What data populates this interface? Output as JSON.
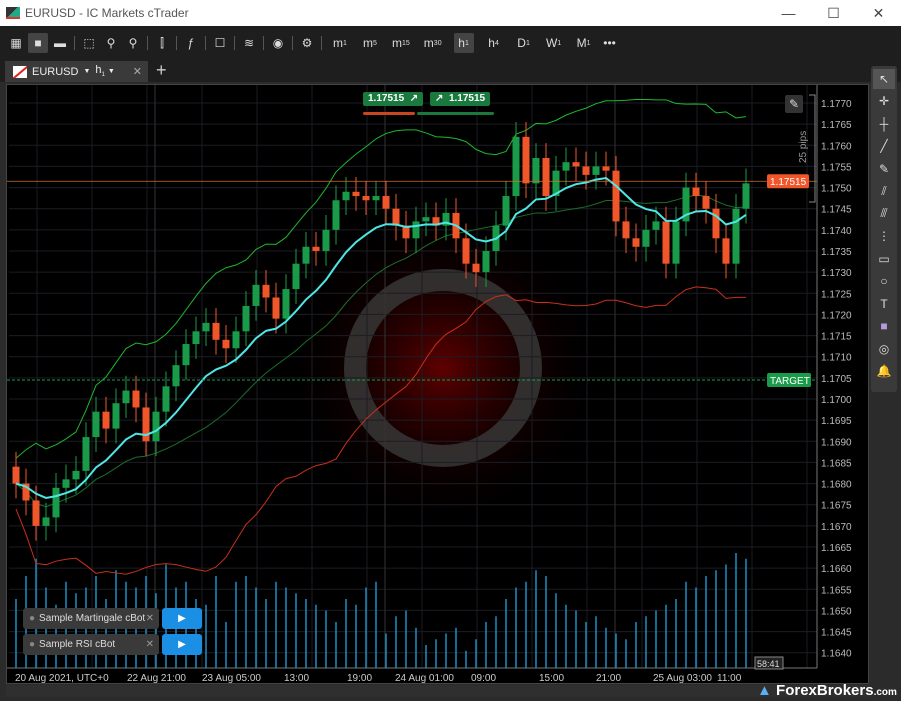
{
  "window": {
    "title": "EURUSD - IC Markets cTrader",
    "minimize": "—",
    "maximize": "☐",
    "close": "✕"
  },
  "toolbar": {
    "items": [
      {
        "icon": "grid-layout-icon",
        "label": "▦"
      },
      {
        "icon": "single-layout-icon",
        "label": "■"
      },
      {
        "icon": "split-layout-icon",
        "label": "▬"
      },
      {
        "icon": "new-chart-icon",
        "label": "⬚"
      },
      {
        "icon": "zoom-out-icon",
        "label": "⚲"
      },
      {
        "icon": "zoom-in-icon",
        "label": "⚲"
      },
      {
        "icon": "candlestick-icon",
        "label": "⫿"
      },
      {
        "icon": "indicator-icon",
        "label": "ƒ"
      },
      {
        "icon": "bot-icon",
        "label": "☐"
      },
      {
        "icon": "layers-icon",
        "label": "≋"
      },
      {
        "icon": "eye-icon",
        "label": "◉"
      },
      {
        "icon": "chart-settings-icon",
        "label": "⚙"
      }
    ],
    "timeframes": [
      {
        "l": "m",
        "s": "1"
      },
      {
        "l": "m",
        "s": "5"
      },
      {
        "l": "m",
        "s": "15"
      },
      {
        "l": "m",
        "s": "30"
      },
      {
        "l": "h",
        "s": "1",
        "selected": true
      },
      {
        "l": "h",
        "s": "4"
      },
      {
        "l": "D",
        "s": "1"
      },
      {
        "l": "W",
        "s": "1"
      },
      {
        "l": "M",
        "s": "1"
      }
    ],
    "more": "•••"
  },
  "tab": {
    "symbol": "EURUSD",
    "timeframe": "h",
    "timeframe_sub": "1",
    "close": "✕",
    "add": "+"
  },
  "trade": {
    "sell_price": "1.17515",
    "buy_price": "1.17515",
    "sell_arrow": "↗",
    "buy_arrow": "↗"
  },
  "price_axis": {
    "labels": [
      "1.1770",
      "1.1765",
      "1.1760",
      "1.1755",
      "1.1750",
      "1.1745",
      "1.1740",
      "1.1735",
      "1.1730",
      "1.1725",
      "1.1720",
      "1.1715",
      "1.1710",
      "1.1705",
      "1.1700",
      "1.1695",
      "1.1690",
      "1.1685",
      "1.1680",
      "1.1675",
      "1.1670",
      "1.1665",
      "1.1660",
      "1.1655",
      "1.1650",
      "1.1645",
      "1.1640"
    ],
    "current_price": "1.17515",
    "target_label": "TARGET",
    "target_price": 1.17045,
    "range_label": "25 pips"
  },
  "time_axis": {
    "labels": [
      "20 Aug 2021, UTC+0",
      "22 Aug 21:00",
      "23 Aug 05:00",
      "13:00",
      "19:00",
      "24 Aug 01:00",
      "09:00",
      "15:00",
      "21:00",
      "25 Aug 03:00",
      "11:00"
    ],
    "countdown": "58:41"
  },
  "bots": [
    {
      "name": "Sample Martingale cBot",
      "close": "✕",
      "play": "▶"
    },
    {
      "name": "Sample RSI cBot",
      "close": "✕",
      "play": "▶"
    }
  ],
  "right_tools": [
    {
      "icon": "cursor-icon",
      "label": "↖"
    },
    {
      "icon": "crosshair-icon",
      "label": "✛"
    },
    {
      "icon": "crosshair-box-icon",
      "label": "┼"
    },
    {
      "icon": "line-icon",
      "label": "╱"
    },
    {
      "icon": "pen-icon",
      "label": "✎"
    },
    {
      "icon": "fibonacci-fan-icon",
      "label": "⫽"
    },
    {
      "icon": "pitchfork-icon",
      "label": "⫻"
    },
    {
      "icon": "fibonacci-icon",
      "label": "⋮"
    },
    {
      "icon": "rectangle-icon",
      "label": "▭"
    },
    {
      "icon": "circle-icon",
      "label": "○"
    },
    {
      "icon": "text-icon",
      "label": "T"
    },
    {
      "icon": "color-swatch-icon",
      "label": "■"
    },
    {
      "icon": "camera-icon",
      "label": "◎"
    },
    {
      "icon": "bell-icon",
      "label": "🔔"
    }
  ],
  "watermark": "ForexBrokers.com",
  "colors": {
    "bull": "#1a9b4a",
    "bear": "#f0562a",
    "ma": "#4fe6e6",
    "upper_band": "#1eb82e",
    "lower_band": "#c8301c",
    "volume": "#1c8fc4",
    "target": "#1a9b4a"
  },
  "chart_data": {
    "type": "candlestick",
    "closes": [
      1.168,
      1.1676,
      1.167,
      1.1672,
      1.1679,
      1.1681,
      1.1683,
      1.1691,
      1.1697,
      1.1693,
      1.1699,
      1.1702,
      1.1698,
      1.169,
      1.1697,
      1.1703,
      1.1708,
      1.1713,
      1.1716,
      1.1718,
      1.1714,
      1.1712,
      1.1716,
      1.1722,
      1.1727,
      1.1724,
      1.1719,
      1.1726,
      1.1732,
      1.1736,
      1.1735,
      1.174,
      1.1747,
      1.1749,
      1.1748,
      1.1747,
      1.1748,
      1.1745,
      1.1741,
      1.1738,
      1.1742,
      1.1743,
      1.1741,
      1.1744,
      1.1738,
      1.1732,
      1.173,
      1.1735,
      1.1741,
      1.1748,
      1.1762,
      1.1751,
      1.1757,
      1.1748,
      1.1754,
      1.1756,
      1.1755,
      1.1753,
      1.1755,
      1.1754,
      1.1742,
      1.1738,
      1.1736,
      1.174,
      1.1742,
      1.1732,
      1.1742,
      1.175,
      1.1748,
      1.1745,
      1.1738,
      1.1732,
      1.1745,
      1.1751
    ],
    "volumes": [
      60,
      80,
      95,
      70,
      55,
      75,
      65,
      70,
      80,
      60,
      85,
      75,
      70,
      80,
      65,
      90,
      70,
      75,
      60,
      55,
      80,
      40,
      75,
      80,
      70,
      60,
      75,
      70,
      65,
      60,
      55,
      50,
      40,
      60,
      55,
      70,
      75,
      30,
      45,
      50,
      35,
      20,
      25,
      30,
      35,
      15,
      25,
      40,
      45,
      60,
      70,
      75,
      85,
      80,
      65,
      55,
      50,
      40,
      45,
      35,
      30,
      25,
      40,
      45,
      50,
      55,
      60,
      75,
      70,
      80,
      85,
      90,
      100,
      95
    ],
    "ylim": [
      1.1636,
      1.1774
    ]
  }
}
